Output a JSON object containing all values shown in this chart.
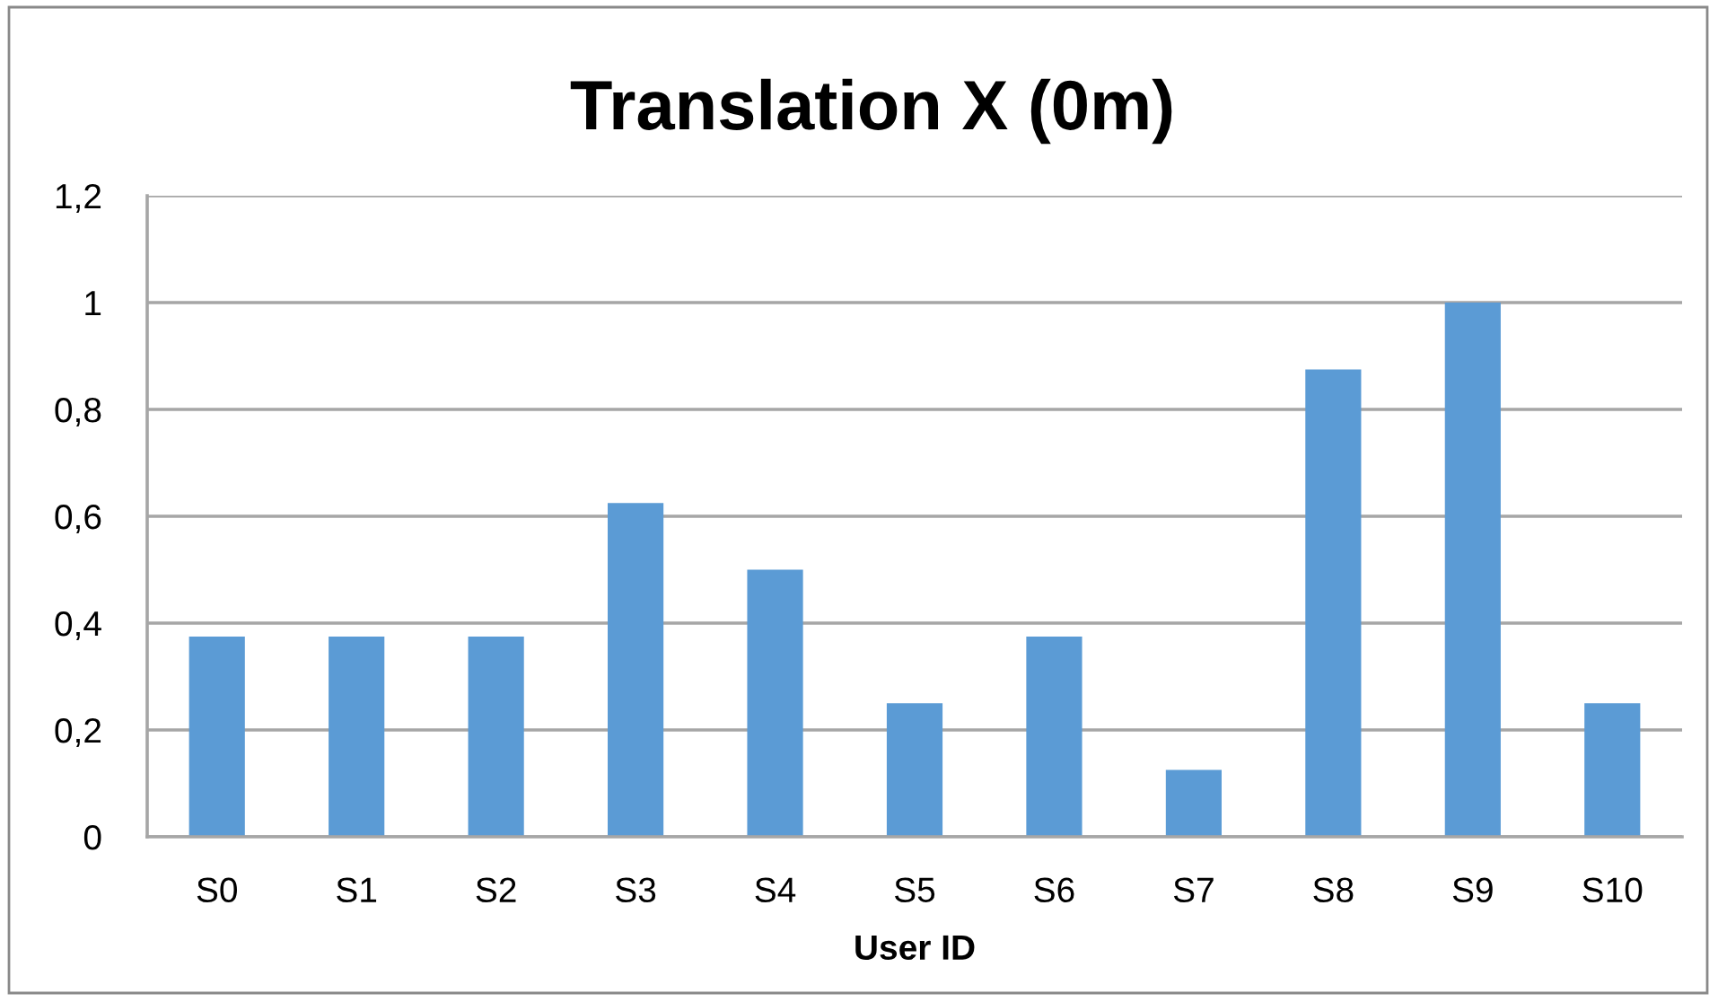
{
  "chart_data": {
    "type": "bar",
    "title": "Translation X (0m)",
    "xlabel": "User ID",
    "categories": [
      "S0",
      "S1",
      "S2",
      "S3",
      "S4",
      "S5",
      "S6",
      "S7",
      "S8",
      "S9",
      "S10"
    ],
    "values": [
      0.375,
      0.375,
      0.375,
      0.625,
      0.5,
      0.25,
      0.375,
      0.125,
      0.875,
      1,
      0.25
    ],
    "color": "#5b9bd5",
    "ylim": [
      0,
      1.2
    ],
    "yticks": [
      0,
      {
        "value": 0.2,
        "label": "0,2"
      },
      {
        "value": 0.4,
        "label": "0,4"
      },
      {
        "value": 0.6,
        "label": "0,6"
      },
      {
        "value": 0.8,
        "label": "0,8"
      },
      1,
      {
        "value": 1.2,
        "label": "1,2"
      }
    ],
    "grid": "y"
  }
}
